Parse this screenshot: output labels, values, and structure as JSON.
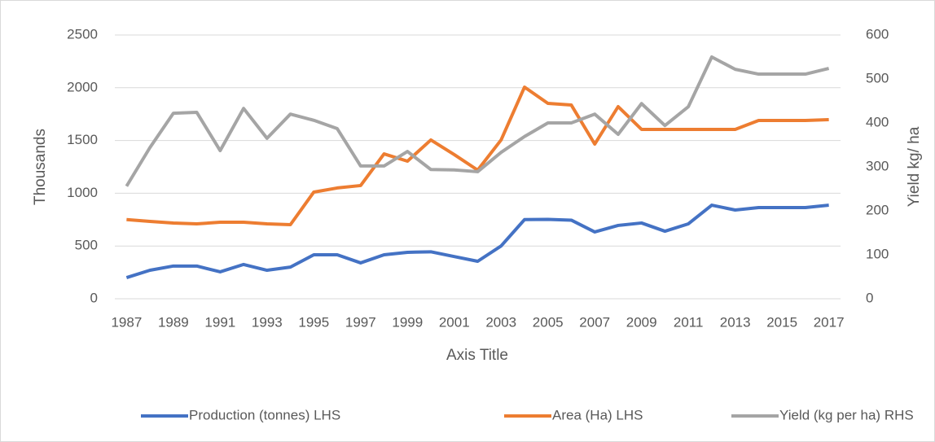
{
  "chart_data": {
    "type": "line",
    "x": [
      1987,
      1988,
      1989,
      1990,
      1991,
      1992,
      1993,
      1994,
      1995,
      1996,
      1997,
      1998,
      1999,
      2000,
      2001,
      2002,
      2003,
      2004,
      2005,
      2006,
      2007,
      2008,
      2009,
      2010,
      2011,
      2012,
      2013,
      2014,
      2015,
      2016,
      2017
    ],
    "xlim": [
      1986.5,
      2017.5
    ],
    "xticks": [
      1987,
      1989,
      1991,
      1993,
      1995,
      1997,
      1999,
      2001,
      2003,
      2005,
      2007,
      2009,
      2011,
      2013,
      2015,
      2017
    ],
    "x_label": "Axis Title",
    "y_label": "Thousands",
    "y2_label": "Yield kg/ ha",
    "ylim": [
      0,
      2500
    ],
    "yticks": [
      0,
      500,
      1000,
      1500,
      2000,
      2500
    ],
    "y2lim": [
      0,
      600
    ],
    "y2ticks": [
      0,
      100,
      200,
      300,
      400,
      500,
      600
    ],
    "grid": true,
    "legend": "bottom",
    "series": [
      {
        "name": "Production (tonnes) LHS",
        "color": "#4472c4",
        "values": [
          200,
          270,
          310,
          310,
          255,
          325,
          270,
          300,
          417,
          417,
          340,
          417,
          440,
          445,
          400,
          355,
          500,
          750,
          752,
          745,
          633,
          695,
          718,
          640,
          710,
          887,
          841,
          864,
          864,
          864,
          887
        ]
      },
      {
        "name": "Area (Ha) LHS",
        "color": "#ed7d31",
        "values": [
          750,
          733,
          718,
          710,
          725,
          725,
          710,
          702,
          1011,
          1050,
          1073,
          1373,
          1304,
          1505,
          1366,
          1219,
          1505,
          2006,
          1852,
          1836,
          1466,
          1821,
          1605,
          1605,
          1605,
          1605,
          1605,
          1690,
          1690,
          1690,
          1698
        ]
      },
      {
        "name": "Yield (kg per ha) RHS",
        "color": "#a5a5a5",
        "axis": "y2",
        "values": [
          256,
          344,
          422,
          424,
          337,
          433,
          365,
          420,
          406,
          387,
          302,
          302,
          335,
          294,
          293,
          289,
          333,
          369,
          400,
          400,
          420,
          374,
          444,
          394,
          437,
          550,
          522,
          511,
          511,
          511,
          524
        ]
      }
    ]
  }
}
